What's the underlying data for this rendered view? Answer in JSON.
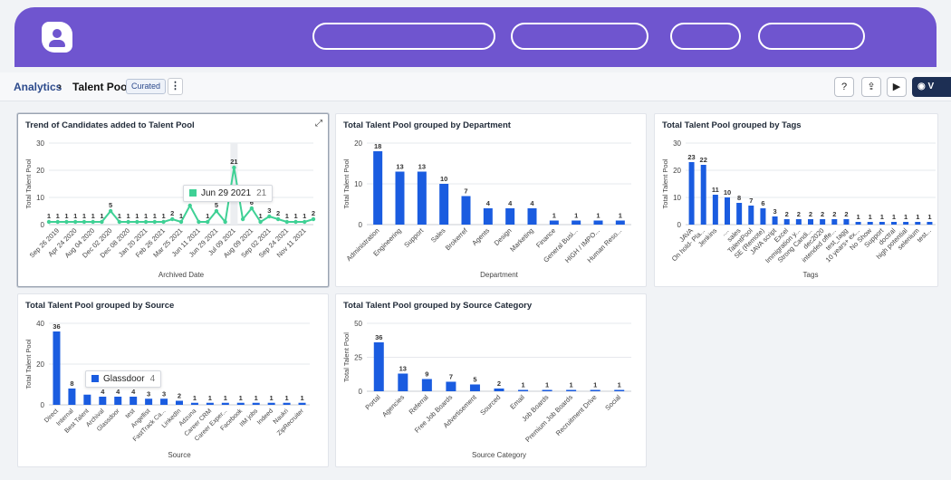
{
  "breadcrumb": {
    "root": "Analytics",
    "separator": "›",
    "current": "Talent Pool",
    "badge": "Curated"
  },
  "toolbar": {
    "help_icon": "?",
    "share_icon": "⇪",
    "present_icon": "▶",
    "view_label": "V"
  },
  "colors": {
    "header": "#6f55cf",
    "bar": "#1a5ce0",
    "line": "#3fd195"
  },
  "trend": {
    "title": "Trend of Candidates added to Talent Pool",
    "ylabel": "Total Talent Pool",
    "xlabel": "Archived Date",
    "tooltip_label": "Jun 29 2021",
    "tooltip_value": "21"
  },
  "source_tooltip": {
    "label": "Glassdoor",
    "value": "4"
  },
  "chart_data": [
    {
      "type": "line",
      "title": "Trend of Candidates added to Talent Pool",
      "xlabel": "Archived Date",
      "ylabel": "Total Talent Pool",
      "ylim": [
        0,
        30
      ],
      "yticks": [
        0,
        10,
        20,
        30
      ],
      "xticks": [
        "Sep 26 2019",
        "Apr 24 2020",
        "Aug 04 2020",
        "Dec 02 2020",
        "Dec 08 2020",
        "Jan 20 2021",
        "Feb 26 2021",
        "Mar 25 2021",
        "Jun 11 2021",
        "Jun 29 2021",
        "Jul 09 2021",
        "Aug 09 2021",
        "Sep 02 2021",
        "Sep 24 2021",
        "Nov 11 2021"
      ],
      "values": [
        1,
        1,
        1,
        1,
        1,
        1,
        1,
        5,
        1,
        1,
        1,
        1,
        1,
        1,
        2,
        1,
        7,
        1,
        1,
        5,
        1,
        21,
        2,
        6,
        1,
        3,
        2,
        1,
        1,
        1,
        2
      ],
      "point_labels": [
        "1",
        "1",
        "1",
        "1",
        "1",
        "1",
        "1",
        "5",
        "1",
        "1",
        "1",
        "1",
        "1",
        "1",
        "2",
        "1",
        "7",
        "",
        "1",
        "5",
        "",
        "21",
        "",
        "6",
        "1",
        "3",
        "2",
        "1",
        "1",
        "1",
        "2"
      ],
      "grid": true
    },
    {
      "type": "bar",
      "title": "Total Talent Pool grouped by Department",
      "xlabel": "Department",
      "ylabel": "Total Talent Pool",
      "ylim": [
        0,
        20
      ],
      "yticks": [
        0,
        10,
        20
      ],
      "categories": [
        "Administration",
        "Engineering",
        "Support",
        "Sales",
        "Brokerref",
        "Agents",
        "Design",
        "Marketing",
        "Finance",
        "General Busi...",
        "HIGH / IMPO...",
        "Human Reso..."
      ],
      "values": [
        18,
        13,
        13,
        10,
        7,
        4,
        4,
        4,
        1,
        1,
        1,
        1
      ],
      "grid": true
    },
    {
      "type": "bar",
      "title": "Total Talent Pool grouped by Tags",
      "xlabel": "Tags",
      "ylabel": "Total Talent Pool",
      "ylim": [
        0,
        30
      ],
      "yticks": [
        0,
        10,
        20,
        30
      ],
      "categories": [
        "JAVA",
        "On hold- Pla...",
        "Jenkins",
        "....",
        "sales",
        "TalentPool",
        "SE (Remote)",
        "JAVA script",
        "Excel",
        "Immigration y...",
        "Strong Candi...",
        "dec2020",
        "intended offe...",
        "test_tagg",
        "10 years+ ex...",
        "No Show",
        "Support",
        "doctral",
        "high potential",
        "selenium",
        "test..."
      ],
      "values": [
        23,
        22,
        11,
        10,
        8,
        7,
        6,
        3,
        2,
        2,
        2,
        2,
        2,
        2,
        1,
        1,
        1,
        1,
        1,
        1,
        1
      ],
      "grid": true
    },
    {
      "type": "bar",
      "title": "Total Talent Pool grouped by Source",
      "xlabel": "Source",
      "ylabel": "Total Talent Pool",
      "ylim": [
        0,
        40
      ],
      "yticks": [
        0,
        20,
        40
      ],
      "categories": [
        "Direct",
        "Internal",
        "Best Talent",
        "Archival",
        "Glassdoor",
        "test",
        "Angellist",
        "FastTrack Ca...",
        "LinkedIn",
        "Adzuna",
        "Career CRM",
        "Career Exper...",
        "Facebook",
        "IIM jobs",
        "Indeed",
        "Naukri",
        "ZipRecruiter"
      ],
      "values": [
        36,
        8,
        5,
        4,
        4,
        4,
        3,
        3,
        2,
        1,
        1,
        1,
        1,
        1,
        1,
        1,
        1
      ],
      "point_labels": [
        "36",
        "8",
        "",
        "4",
        "4",
        "4",
        "3",
        "3",
        "2",
        "1",
        "1",
        "1",
        "1",
        "1",
        "1",
        "1",
        "1"
      ],
      "grid": true
    },
    {
      "type": "bar",
      "title": "Total Talent Pool grouped by Source Category",
      "xlabel": "Source Category",
      "ylabel": "Total Talent Pool",
      "ylim": [
        0,
        50
      ],
      "yticks": [
        0,
        25,
        50
      ],
      "categories": [
        "Portal",
        "Agencies",
        "Referral",
        "Free Job Boards",
        "Advertisement",
        "Sourced",
        "Email",
        "Job Boards",
        "Premium Job Boards",
        "Recruitment Drive",
        "Social"
      ],
      "values": [
        36,
        13,
        9,
        7,
        5,
        2,
        1,
        1,
        1,
        1,
        1
      ],
      "grid": true
    }
  ]
}
